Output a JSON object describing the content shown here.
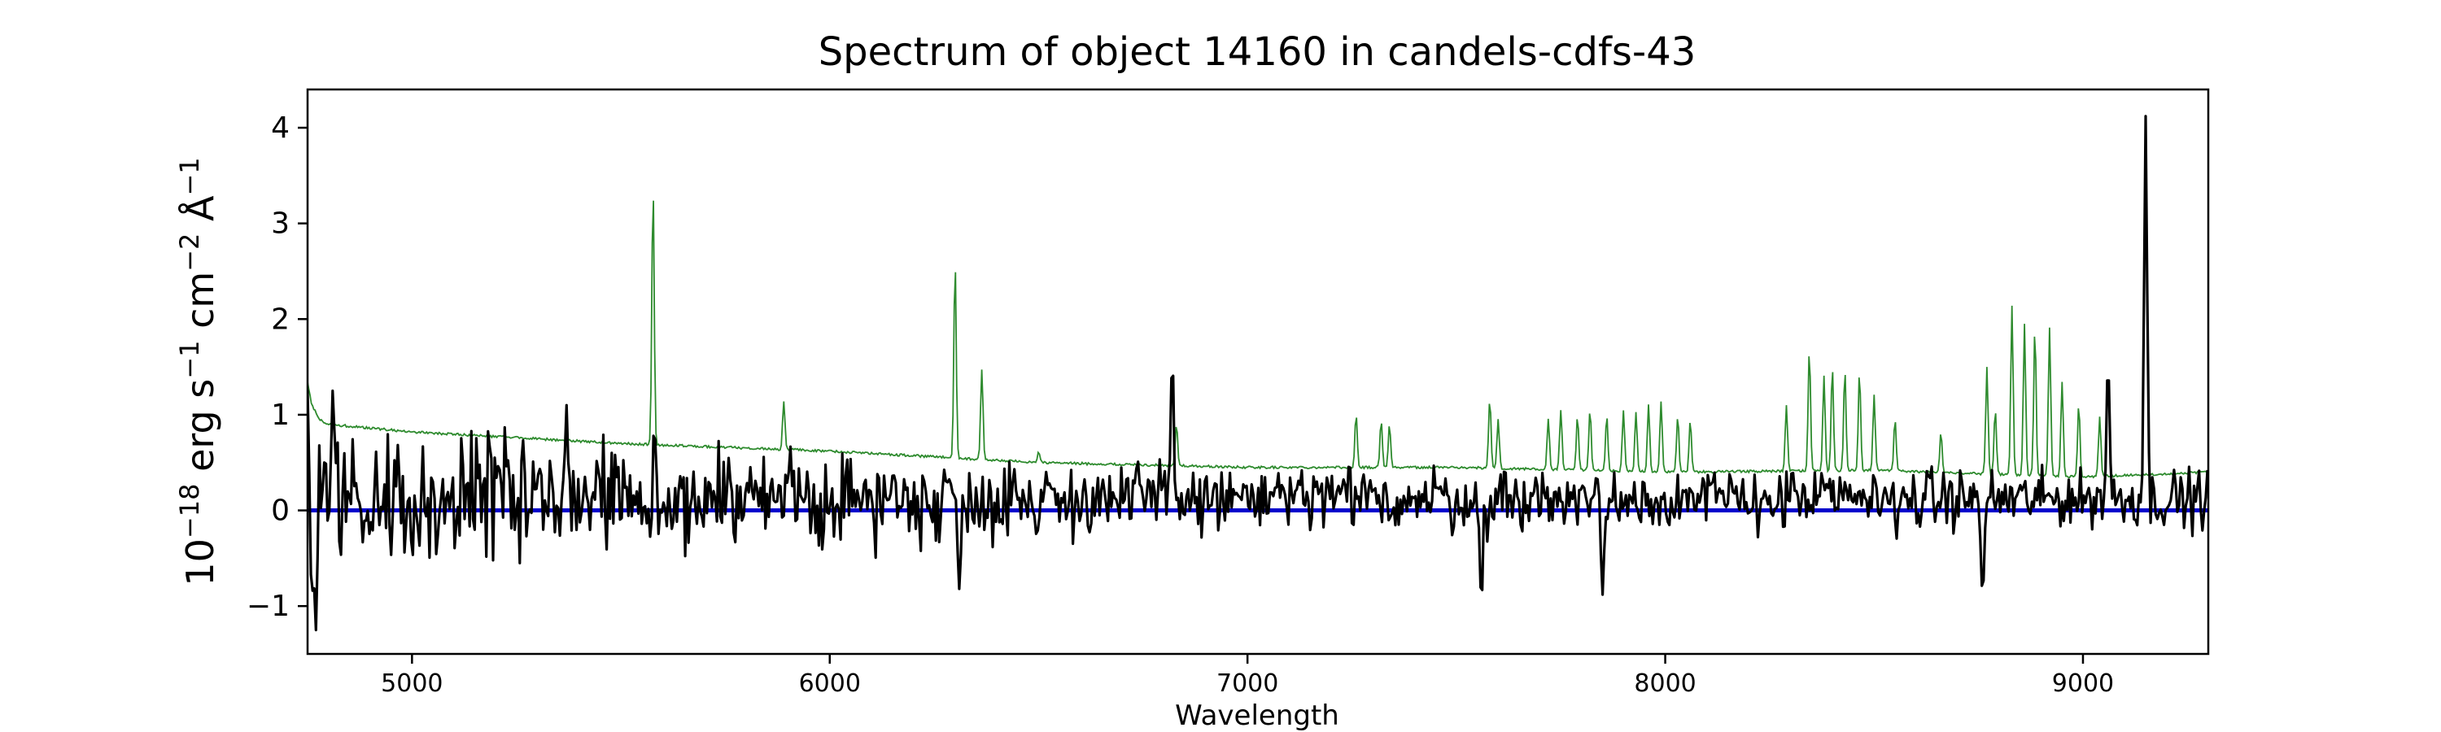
{
  "chart_data": {
    "type": "line",
    "title": "Spectrum of object 14160 in candels-cdfs-43",
    "xlabel": "Wavelength",
    "ylabel": {
      "base": "10",
      "exp": "−18",
      "unit1": " erg s",
      "exp2": "−1",
      "unit2": " cm",
      "exp3": "−2",
      "unit3": " Å",
      "exp4": "−1"
    },
    "xlim": [
      4750,
      9300
    ],
    "ylim": [
      -1.5,
      4.4
    ],
    "xticks": [
      5000,
      6000,
      7000,
      8000,
      9000
    ],
    "xtick_labels": [
      "5000",
      "6000",
      "7000",
      "8000",
      "9000"
    ],
    "yticks": [
      -1,
      0,
      1,
      2,
      3,
      4
    ],
    "ytick_labels": [
      "−1",
      "0",
      "1",
      "2",
      "3",
      "4"
    ],
    "grid": false,
    "series": [
      {
        "role": "noise",
        "color": "#2e8b2e",
        "continuum": [
          [
            4750,
            1.35
          ],
          [
            4760,
            1.1
          ],
          [
            4780,
            0.95
          ],
          [
            4800,
            0.9
          ],
          [
            5000,
            0.82
          ],
          [
            5500,
            0.7
          ],
          [
            6000,
            0.62
          ],
          [
            6500,
            0.5
          ],
          [
            7000,
            0.45
          ],
          [
            7500,
            0.45
          ],
          [
            8000,
            0.4
          ],
          [
            8500,
            0.42
          ],
          [
            9000,
            0.35
          ],
          [
            9300,
            0.4
          ]
        ],
        "lines": [
          [
            5577,
            3.4
          ],
          [
            5890,
            1.15
          ],
          [
            6300,
            2.62
          ],
          [
            6364,
            1.48
          ],
          [
            6500,
            0.62
          ],
          [
            6830,
            0.9
          ],
          [
            7260,
            1.0
          ],
          [
            7320,
            0.95
          ],
          [
            7340,
            0.9
          ],
          [
            7580,
            1.17
          ],
          [
            7600,
            0.95
          ],
          [
            7720,
            0.95
          ],
          [
            7750,
            1.05
          ],
          [
            7790,
            0.98
          ],
          [
            7820,
            1.05
          ],
          [
            7860,
            1.0
          ],
          [
            7900,
            1.05
          ],
          [
            7930,
            1.02
          ],
          [
            7960,
            1.1
          ],
          [
            7990,
            1.15
          ],
          [
            8030,
            1.0
          ],
          [
            8060,
            0.95
          ],
          [
            8290,
            1.1
          ],
          [
            8345,
            1.68
          ],
          [
            8380,
            1.4
          ],
          [
            8400,
            1.5
          ],
          [
            8430,
            1.47
          ],
          [
            8465,
            1.45
          ],
          [
            8500,
            1.2
          ],
          [
            8550,
            0.95
          ],
          [
            8660,
            0.82
          ],
          [
            8770,
            1.5
          ],
          [
            8790,
            1.05
          ],
          [
            8830,
            2.15
          ],
          [
            8860,
            1.95
          ],
          [
            8885,
            1.92
          ],
          [
            8920,
            1.92
          ],
          [
            8950,
            1.35
          ],
          [
            8990,
            1.1
          ],
          [
            9040,
            0.98
          ]
        ]
      },
      {
        "role": "flux",
        "color": "#000000",
        "features": [
          [
            4750,
            1.3
          ],
          [
            4760,
            -0.9
          ],
          [
            4770,
            -1.25
          ],
          [
            4790,
            0.5
          ],
          [
            4810,
            1.25
          ],
          [
            5370,
            1.1
          ],
          [
            5580,
            0.9
          ],
          [
            6310,
            -0.82
          ],
          [
            6820,
            1.62
          ],
          [
            7560,
            -1.02
          ],
          [
            7850,
            -0.88
          ],
          [
            8760,
            -0.92
          ],
          [
            9060,
            1.58
          ],
          [
            9150,
            4.12
          ]
        ]
      },
      {
        "role": "zero",
        "color": "#0000cc",
        "values": [
          0,
          0
        ]
      }
    ]
  }
}
